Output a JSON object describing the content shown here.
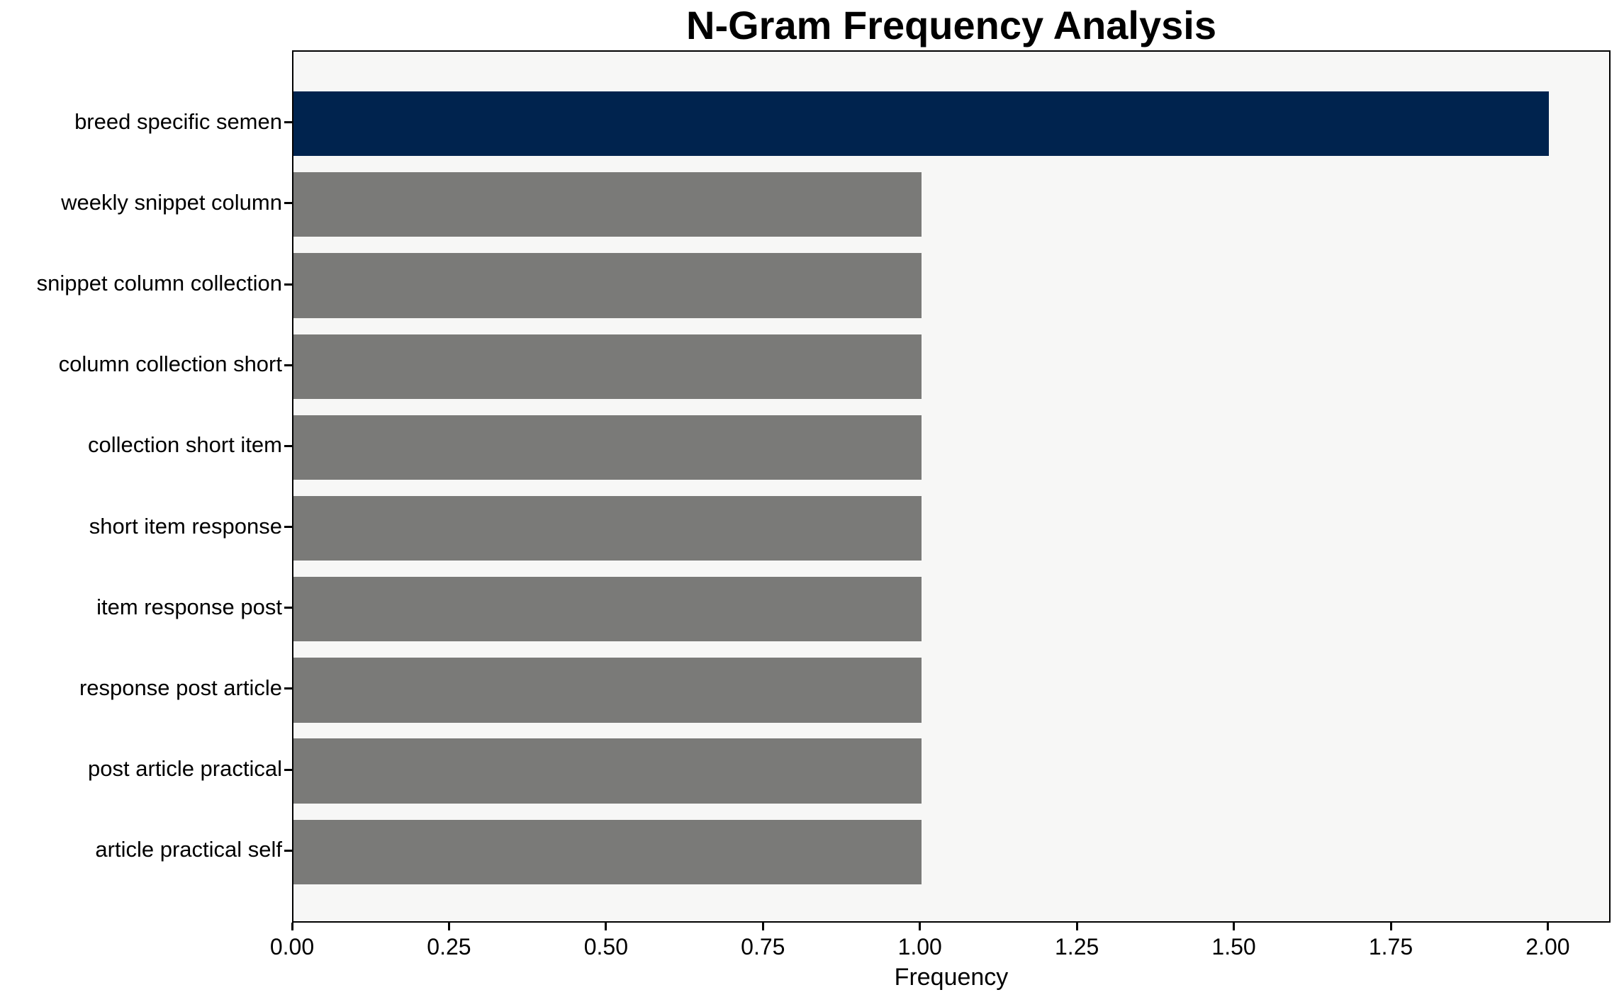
{
  "chart_data": {
    "type": "bar",
    "orientation": "horizontal",
    "title": "N-Gram Frequency Analysis",
    "xlabel": "Frequency",
    "ylabel": "",
    "categories": [
      "breed specific semen",
      "weekly snippet column",
      "snippet column collection",
      "column collection short",
      "collection short item",
      "short item response",
      "item response post",
      "response post article",
      "post article practical",
      "article practical self"
    ],
    "values": [
      2,
      1,
      1,
      1,
      1,
      1,
      1,
      1,
      1,
      1
    ],
    "highlight_index": 0,
    "xlim": [
      0,
      2.1
    ],
    "xticks": [
      0,
      0.25,
      0.5,
      0.75,
      1.0,
      1.25,
      1.5,
      1.75,
      2.0
    ],
    "xtick_labels": [
      "0.00",
      "0.25",
      "0.50",
      "0.75",
      "1.00",
      "1.25",
      "1.50",
      "1.75",
      "2.00"
    ],
    "grid": false,
    "legend_position": "none",
    "colors": {
      "highlight_bar": "#00234e",
      "default_bar": "#7a7a78",
      "plot_background": "#f7f7f6",
      "figure_background": "#ffffff",
      "axis_line": "#000000",
      "text": "#000000"
    }
  }
}
